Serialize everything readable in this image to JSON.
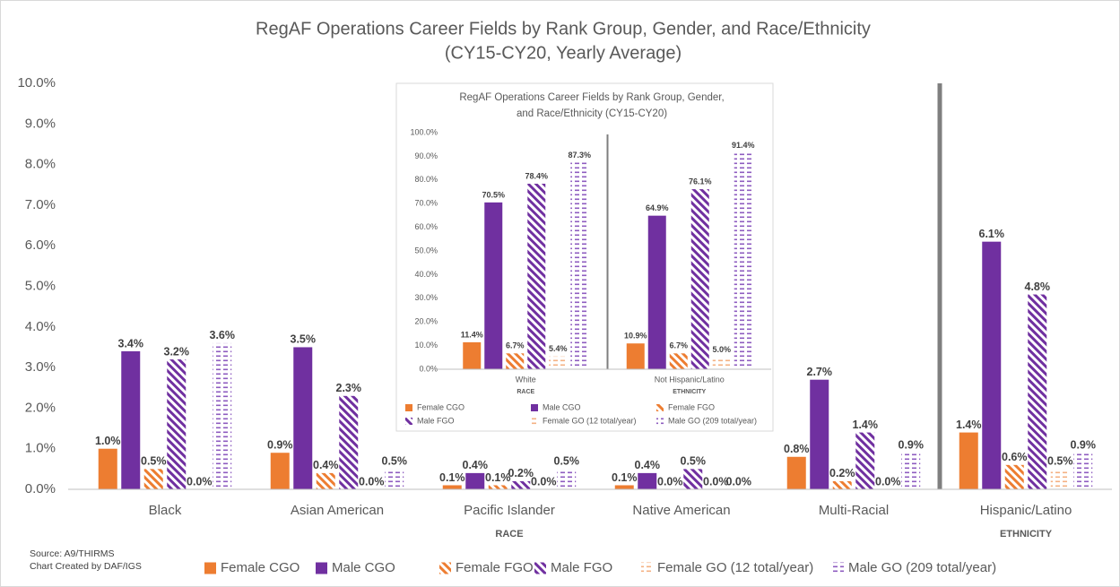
{
  "chart_data": [
    {
      "type": "bar",
      "title": [
        "RegAF Operations Career Fields by Rank Group, Gender, and Race/Ethnicity",
        "(CY15-CY20, Yearly Average)"
      ],
      "categories": [
        "Black",
        "Asian American",
        "Pacific Islander",
        "Native American",
        "Multi-Racial",
        "Hispanic/Latino"
      ],
      "groups": [
        "RACE",
        "RACE",
        "RACE",
        "RACE",
        "RACE",
        "ETHNICITY"
      ],
      "notes": [
        "Source: A9/THIRMS",
        "Chart Created by DAF/IGS"
      ],
      "ylim": [
        0,
        10
      ],
      "yticks": [
        {
          "value": 0,
          "label": "0.0%"
        },
        {
          "value": 1,
          "label": "1.0%"
        },
        {
          "value": 2,
          "label": "2.0%"
        },
        {
          "value": 3,
          "label": "3.0%"
        },
        {
          "value": 4,
          "label": "4.0%"
        },
        {
          "value": 5,
          "label": "5.0%"
        },
        {
          "value": 6,
          "label": "6.0%"
        },
        {
          "value": 7,
          "label": "7.0%"
        },
        {
          "value": 8,
          "label": "8.0%"
        },
        {
          "value": 9,
          "label": "9.0%"
        },
        {
          "value": 10,
          "label": "10.0%"
        }
      ],
      "grid": false,
      "legend": "bottom",
      "series": [
        {
          "name": "Female CGO",
          "color": "#ed7d31",
          "pattern": "solid",
          "values": [
            1.0,
            0.9,
            0.1,
            0.1,
            0.8,
            1.4
          ],
          "value_labels": [
            "1.0%",
            "0.9%",
            "0.1%",
            "0.1%",
            "0.8%",
            "1.4%"
          ]
        },
        {
          "name": "Male CGO",
          "color": "#7030a0",
          "pattern": "solid",
          "values": [
            3.4,
            3.5,
            0.4,
            0.4,
            2.7,
            6.1
          ],
          "value_labels": [
            "3.4%",
            "3.5%",
            "0.4%",
            "0.4%",
            "2.7%",
            "6.1%"
          ]
        },
        {
          "name": "Female FGO",
          "color": "#ed7d31",
          "pattern": "diagonal",
          "values": [
            0.5,
            0.4,
            0.1,
            0.0,
            0.2,
            0.6
          ],
          "value_labels": [
            "0.5%",
            "0.4%",
            "0.1%",
            "0.0%",
            "0.2%",
            "0.6%"
          ]
        },
        {
          "name": "Male FGO",
          "color": "#7030a0",
          "pattern": "diagonal",
          "values": [
            3.2,
            2.3,
            0.2,
            0.5,
            1.4,
            4.8
          ],
          "value_labels": [
            "3.2%",
            "2.3%",
            "0.2%",
            "0.5%",
            "1.4%",
            "4.8%"
          ]
        },
        {
          "name": "Female GO (12 total/year)",
          "color": "#f4b183",
          "pattern": "dashed",
          "values": [
            0.0,
            0.0,
            0.0,
            0.0,
            0.0,
            0.5
          ],
          "value_labels": [
            "0.0%",
            "0.0%",
            "0.0%",
            "0.0%",
            "0.0%",
            "0.5%"
          ]
        },
        {
          "name": "Male GO (209  total/year)",
          "color": "#8e5cc0",
          "pattern": "dashed",
          "values": [
            3.6,
            0.5,
            0.5,
            0.0,
            0.9,
            0.9
          ],
          "value_labels": [
            "3.6%",
            "0.5%",
            "0.5%",
            "0.0%",
            "0.9%",
            "0.9%"
          ]
        }
      ]
    },
    {
      "type": "bar",
      "title": [
        "RegAF Operations Career Fields by Rank Group, Gender,",
        "and Race/Ethnicity (CY15-CY20)"
      ],
      "categories": [
        "White",
        "Not Hispanic/Latino"
      ],
      "groups": [
        "RACE",
        "ETHNICITY"
      ],
      "ylim": [
        0,
        100
      ],
      "yticks": [
        {
          "value": 0,
          "label": "0.0%"
        },
        {
          "value": 10,
          "label": "10.0%"
        },
        {
          "value": 20,
          "label": "20.0%"
        },
        {
          "value": 30,
          "label": "30.0%"
        },
        {
          "value": 40,
          "label": "40.0%"
        },
        {
          "value": 50,
          "label": "50.0%"
        },
        {
          "value": 60,
          "label": "60.0%"
        },
        {
          "value": 70,
          "label": "70.0%"
        },
        {
          "value": 80,
          "label": "80.0%"
        },
        {
          "value": 90,
          "label": "90.0%"
        },
        {
          "value": 100,
          "label": "100.0%"
        }
      ],
      "grid": false,
      "legend": "bottom",
      "series": [
        {
          "name": "Female CGO",
          "color": "#ed7d31",
          "pattern": "solid",
          "values": [
            11.4,
            10.9
          ],
          "value_labels": [
            "11.4%",
            "10.9%"
          ]
        },
        {
          "name": "Male CGO",
          "color": "#7030a0",
          "pattern": "solid",
          "values": [
            70.5,
            64.9
          ],
          "value_labels": [
            "70.5%",
            "64.9%"
          ]
        },
        {
          "name": "Female FGO",
          "color": "#ed7d31",
          "pattern": "diagonal",
          "values": [
            6.7,
            6.7
          ],
          "value_labels": [
            "6.7%",
            "6.7%"
          ]
        },
        {
          "name": "Male FGO",
          "color": "#7030a0",
          "pattern": "diagonal",
          "values": [
            78.4,
            76.1
          ],
          "value_labels": [
            "78.4%",
            "76.1%"
          ]
        },
        {
          "name": "Female GO (12 total/year)",
          "color": "#f4b183",
          "pattern": "dashed",
          "values": [
            5.4,
            5.0
          ],
          "value_labels": [
            "5.4%",
            "5.0%"
          ]
        },
        {
          "name": "Male GO (209  total/year)",
          "color": "#8e5cc0",
          "pattern": "dashed",
          "values": [
            87.3,
            91.4
          ],
          "value_labels": [
            "87.3%",
            "91.4%"
          ]
        }
      ]
    }
  ]
}
